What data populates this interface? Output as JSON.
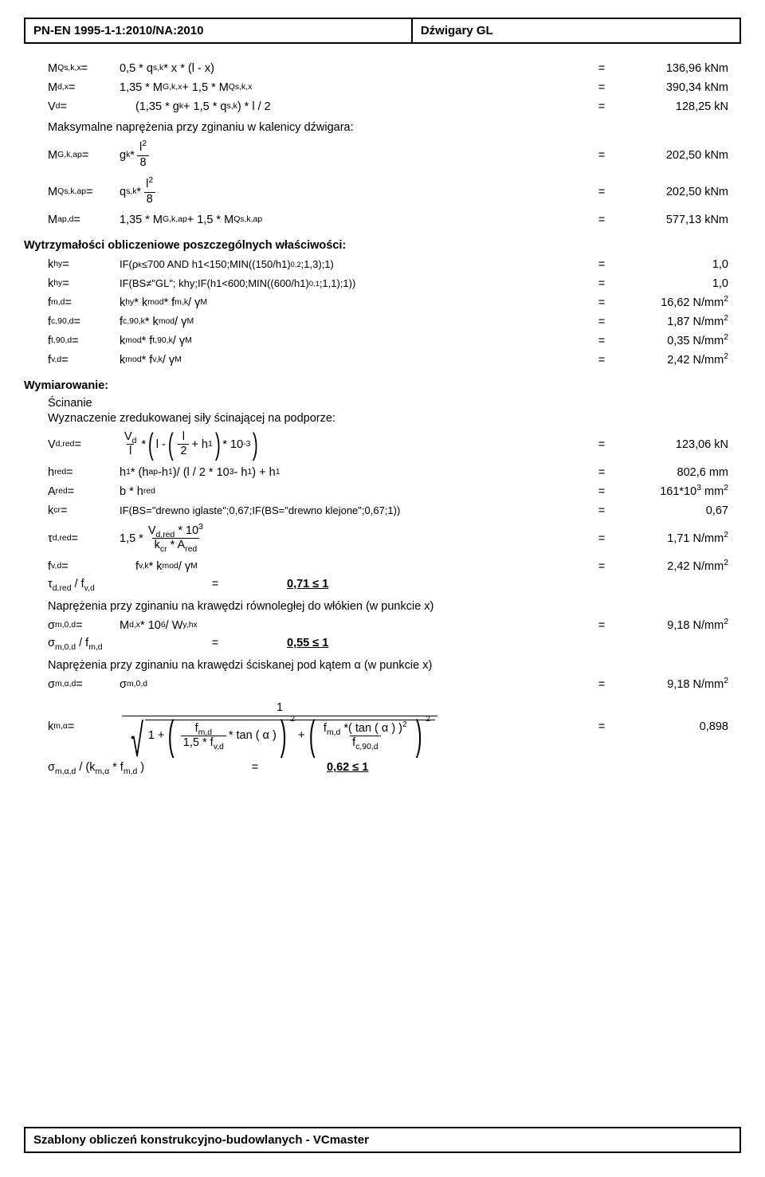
{
  "header": {
    "standard": "PN-EN 1995-1-1:2010/NA:2010",
    "title": "Dźwigary GL"
  },
  "footer": "Szablony obliczeń konstrukcyjno-budowlanych - VCmaster",
  "block1": {
    "r1": {
      "sym": "M<sub>Qs,k,x</sub> =",
      "expr": "0,5 * q<sub>s,k</sub> * x * (l - x)",
      "val": "136,96 kNm"
    },
    "r2": {
      "sym": "M<sub>d,x</sub> =",
      "expr": "1,35 * M<sub>G,k,x</sub> + 1,5 * M<sub>Qs,k,x</sub>",
      "val": "390,34 kNm"
    },
    "r3": {
      "sym": "V<sub>d</sub> =",
      "expr": "(1,35 * g<sub>k</sub> + 1,5 * q<sub>s,k</sub>) * l / 2",
      "val": "128,25 kN"
    },
    "note": "Maksymalne naprężenia przy zginaniu w kalenicy dźwigara:",
    "r4": {
      "sym": "M<sub>G,k,ap</sub> =",
      "val": "202,50 kNm"
    },
    "r5": {
      "sym": "M<sub>Qs,k,ap</sub> =",
      "val": "202,50 kNm"
    },
    "r6": {
      "sym": "M<sub>ap,d</sub> =",
      "expr": "1,35 * M<sub>G,k,ap</sub> + 1,5 * M<sub>Qs,k,ap</sub>",
      "val": "577,13 kNm"
    }
  },
  "section2": {
    "title": "Wytrzymałości obliczeniowe poszczególnych właściwości:",
    "r1": {
      "sym": "k<sub>hy</sub> =",
      "expr": "IF(ρ<sub>k</sub>≤700 AND h1<150;MIN((150/h1)<sup>0,2</sup>;1,3);1)",
      "val": "1,0"
    },
    "r2": {
      "sym": "k<sub>hy</sub> =",
      "expr": "IF(BS≠\"GL\"; khy;IF(h1<600;MIN((600/h1)<sup>0,1</sup>;1,1);1))",
      "val": "1,0"
    },
    "r3": {
      "sym": "f<sub>m,d</sub> =",
      "expr": "k<sub>hy</sub> * k<sub>mod</sub> * f<sub>m,k</sub> / γ<sub>M</sub>",
      "val": "16,62 N/mm<sup>2</sup>"
    },
    "r4": {
      "sym": "f<sub>c,90,d</sub> =",
      "expr": "f<sub>c,90,k</sub> * k<sub>mod</sub> / γ<sub>M</sub>",
      "val": "1,87 N/mm<sup>2</sup>"
    },
    "r5": {
      "sym": "f<sub>t,90,d</sub> =",
      "expr": "k<sub>mod</sub> * f<sub>t,90,k</sub> / γ<sub>M</sub>",
      "val": "0,35 N/mm<sup>2</sup>"
    },
    "r6": {
      "sym": "f<sub>v,d</sub> =",
      "expr": "k<sub>mod</sub> * f<sub>v,k</sub> / γ<sub>M</sub>",
      "val": "2,42 N/mm<sup>2</sup>"
    }
  },
  "section3": {
    "title": "Wymiarowanie:",
    "sub1": "Ścinanie",
    "sub2": "Wyznaczenie zredukowanej siły ścinającej na podporze:",
    "r1": {
      "sym": "V<sub>d,red</sub> =",
      "val": "123,06 kN"
    },
    "r2": {
      "sym": "h<sub>red</sub> =",
      "expr": "h<sub>1</sub> * (h<sub>ap</sub> -h<sub>1</sub>)/ (l / 2 * 10<sup>3</sup> - h<sub>1</sub>) + h<sub>1</sub>",
      "val": "802,6 mm"
    },
    "r3": {
      "sym": "A<sub>red</sub> =",
      "expr": "b * h<sub>red</sub>",
      "val": "161*10<sup>3</sup> mm<sup>2</sup>"
    },
    "r4": {
      "sym": "k<sub>cr</sub> =",
      "expr": "IF(BS=\"drewno iglaste\";0,67;IF(BS=\"drewno klejone\";0,67;1))",
      "val": "0,67"
    },
    "r5": {
      "sym": "τ<sub>d,red</sub> =",
      "val": "1,71 N/mm<sup>2</sup>"
    },
    "r6": {
      "sym": "f<sub>v,d</sub> =",
      "expr": "f<sub>v,k</sub> * k<sub>mod</sub> / γ<sub>M</sub>",
      "val": "2,42 N/mm<sup>2</sup>"
    },
    "check1": {
      "lhs": "τ<sub>d,red</sub> / f<sub>v,d</sub>",
      "res": "0,71 ≤ 1"
    },
    "note2": "Naprężenia przy zginaniu na krawędzi równoległej do włókien (w punkcie x)",
    "r7": {
      "sym": "σ<sub>m,0,d</sub> =",
      "expr": "M<sub>d,x</sub> * 10<sup>6</sup> / W<sub>y,hx</sub>",
      "val": "9,18 N/mm<sup>2</sup>"
    },
    "check2": {
      "lhs": "σ<sub>m,0,d</sub> / f<sub>m,d</sub>",
      "res": "0,55 ≤ 1"
    },
    "note3": "Naprężenia przy zginaniu na krawędzi ściskanej  pod kątem α (w punkcie x)",
    "r8": {
      "sym": "σ<sub>m,α,d</sub> =",
      "expr": "σ<sub>m,0,d</sub>",
      "val": "9,18 N/mm<sup>2</sup>"
    },
    "r9": {
      "sym": "k<sub>m,α</sub> =",
      "val": "0,898"
    },
    "check3": {
      "lhs": "σ<sub>m,α,d</sub> / (k<sub>m,α</sub> * f<sub>m,d</sub> )",
      "res": "0,62 ≤ 1"
    }
  }
}
